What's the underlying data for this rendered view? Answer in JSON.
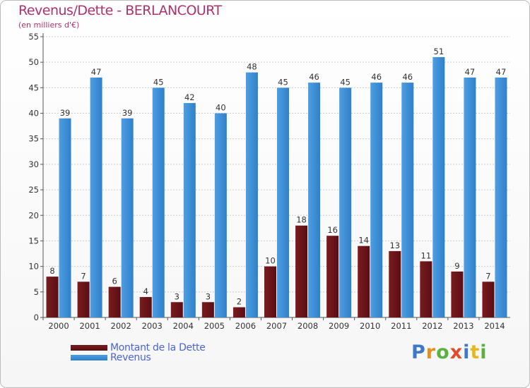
{
  "header": {
    "title": "Revenus/Dette - BERLANCOURT",
    "subtitle": "(en milliers d'€)"
  },
  "legend": {
    "debt_label": "Montant de la Dette",
    "revenue_label": "Revenus"
  },
  "logo": {
    "text": "Proxiti"
  },
  "colors": {
    "debt": "#7a1c20",
    "debt_dark": "#5a0e12",
    "revenue": "#4d9ee2",
    "revenue_dark": "#2f80c9",
    "grid": "#cccccc",
    "axis": "#555555"
  },
  "chart_data": {
    "type": "bar",
    "title": "Revenus/Dette - BERLANCOURT",
    "subtitle": "(en milliers d'€)",
    "xlabel": "",
    "ylabel": "",
    "ylim": [
      0,
      55
    ],
    "ytick_step": 5,
    "grid": true,
    "legend_position": "bottom-left",
    "categories": [
      "2000",
      "2001",
      "2002",
      "2003",
      "2004",
      "2005",
      "2006",
      "2007",
      "2008",
      "2009",
      "2010",
      "2011",
      "2012",
      "2013",
      "2014"
    ],
    "series": [
      {
        "name": "Montant de la Dette",
        "values": [
          8,
          7,
          6,
          4,
          3,
          3,
          2,
          10,
          18,
          16,
          14,
          13,
          11,
          9,
          7
        ]
      },
      {
        "name": "Revenus",
        "values": [
          39,
          47,
          39,
          45,
          42,
          40,
          48,
          45,
          46,
          45,
          46,
          46,
          51,
          47,
          47
        ]
      }
    ]
  }
}
